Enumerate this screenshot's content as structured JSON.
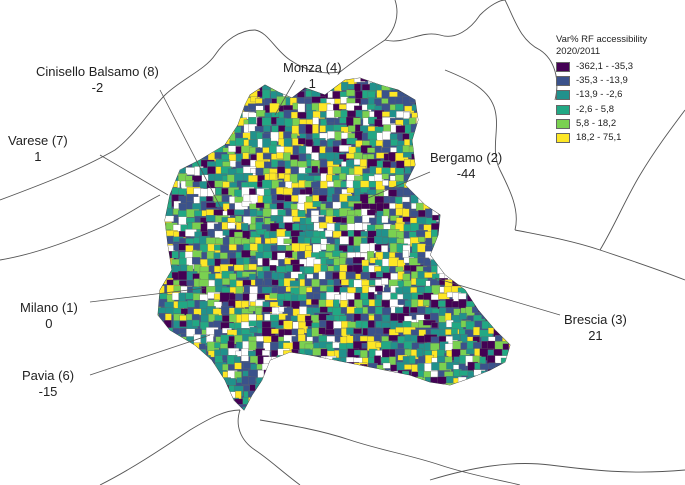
{
  "legend": {
    "title_line1": "Var% RF accessibility",
    "title_line2": "2020/2011",
    "items": [
      {
        "label": "-362,1 - -35,3",
        "color": "#440154"
      },
      {
        "label": "-35,3 - -13,9",
        "color": "#3b528b"
      },
      {
        "label": "-13,9 - -2,6",
        "color": "#21918c"
      },
      {
        "label": "-2,6 - 5,8",
        "color": "#22a884"
      },
      {
        "label": "5,8 - 18,2",
        "color": "#7ad151"
      },
      {
        "label": "18,2 - 75,1",
        "color": "#fde725"
      }
    ]
  },
  "cities": {
    "cinisello": {
      "name": "Cinisello Balsamo  (8)",
      "value": "-2"
    },
    "monza": {
      "name": "Monza  (4)",
      "value": "1"
    },
    "varese": {
      "name": "Varese  (7)",
      "value": "1"
    },
    "bergamo": {
      "name": "Bergamo  (2)",
      "value": "-44"
    },
    "milano": {
      "name": "Milano  (1)",
      "value": "0"
    },
    "brescia": {
      "name": "Brescia  (3)",
      "value": "21"
    },
    "pavia": {
      "name": "Pavia  (6)",
      "value": "-15"
    }
  }
}
